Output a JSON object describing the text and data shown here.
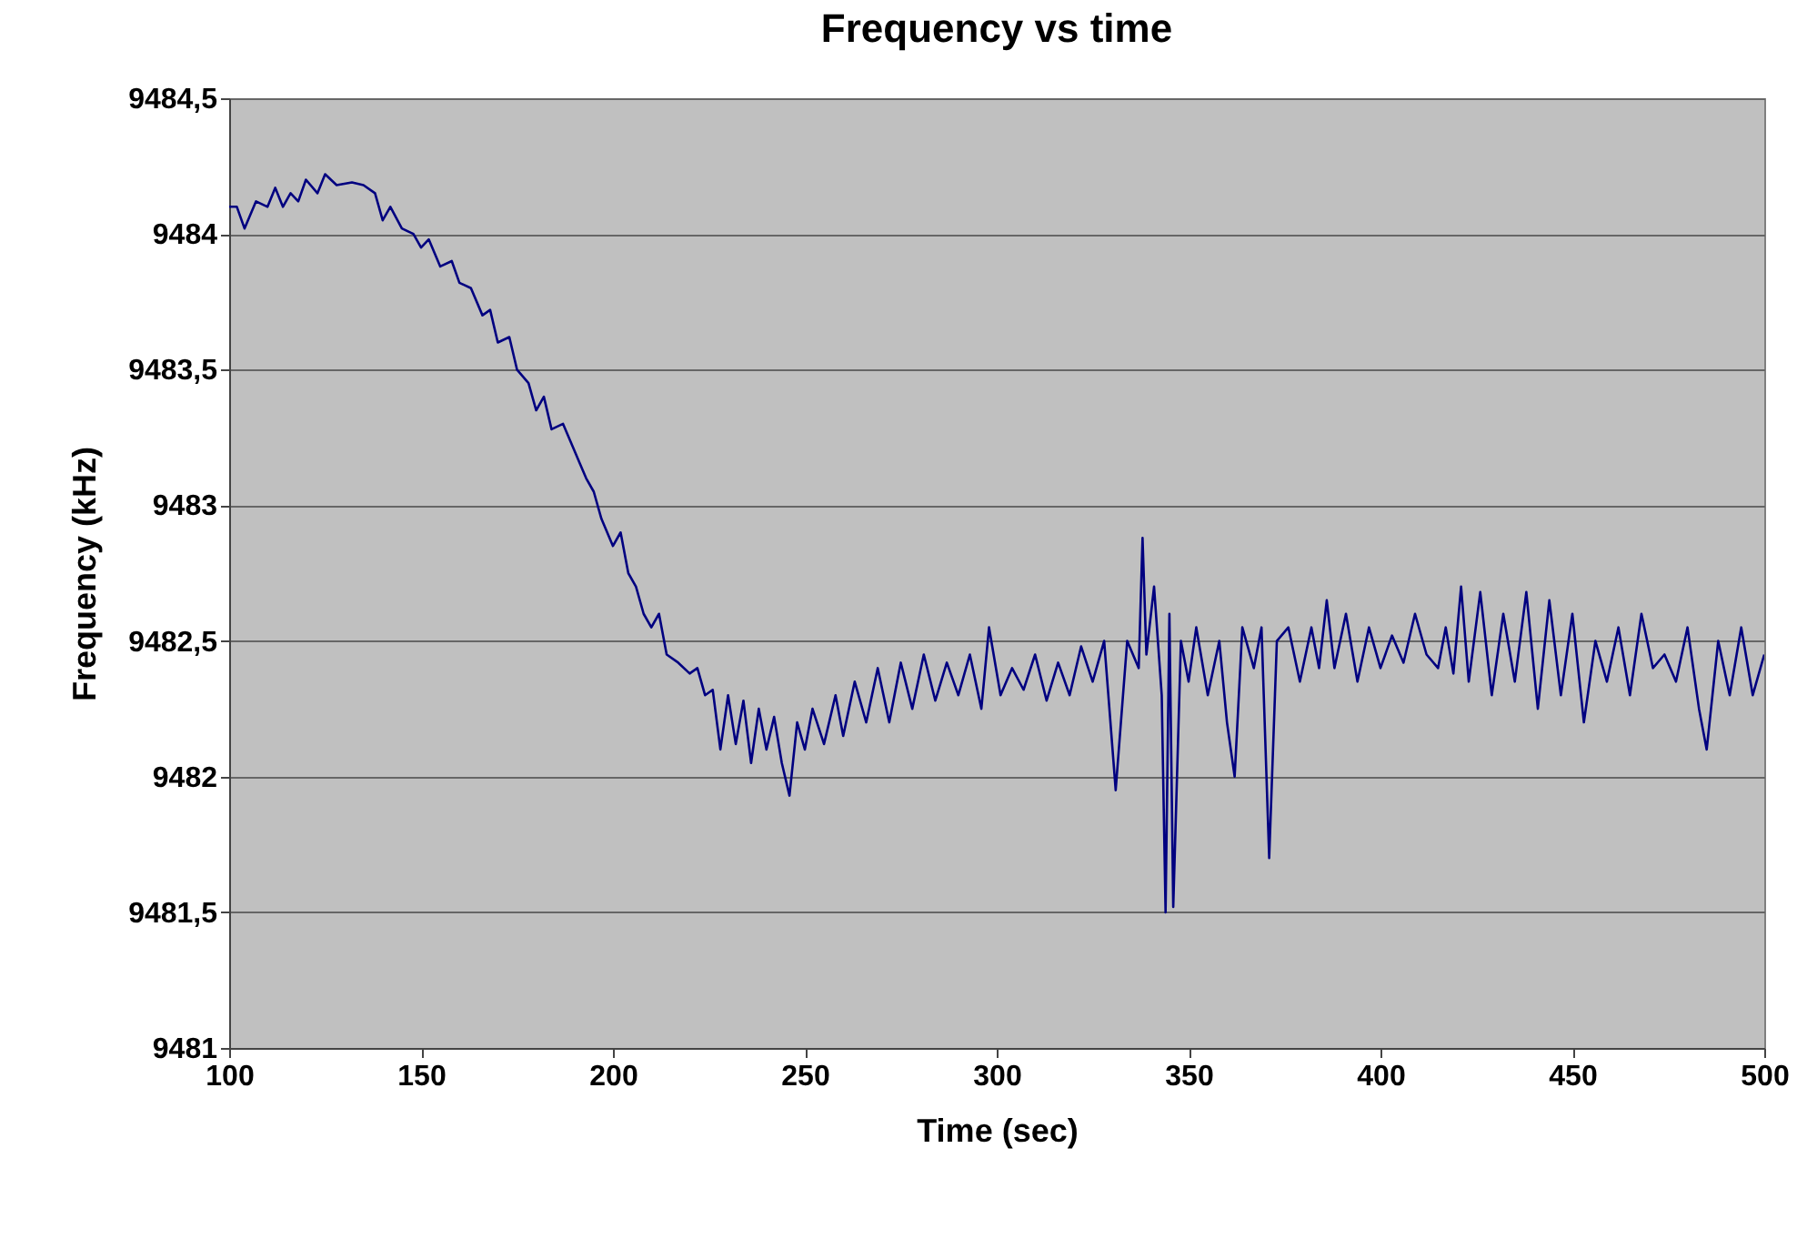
{
  "chart_data": {
    "type": "line",
    "title": "Frequency vs time",
    "xlabel": "Time (sec)",
    "ylabel": "Frequency (kHz)",
    "x": [
      100,
      102,
      104,
      107,
      110,
      112,
      114,
      116,
      118,
      120,
      123,
      125,
      128,
      132,
      135,
      138,
      140,
      142,
      145,
      148,
      150,
      152,
      155,
      158,
      160,
      163,
      166,
      168,
      170,
      173,
      175,
      178,
      180,
      182,
      184,
      187,
      190,
      193,
      195,
      197,
      200,
      202,
      204,
      206,
      208,
      210,
      212,
      214,
      217,
      220,
      222,
      224,
      226,
      228,
      230,
      232,
      234,
      236,
      238,
      240,
      242,
      244,
      246,
      248,
      250,
      252,
      255,
      258,
      260,
      263,
      266,
      269,
      272,
      275,
      278,
      281,
      284,
      287,
      290,
      293,
      296,
      298,
      301,
      304,
      307,
      310,
      313,
      316,
      319,
      322,
      325,
      328,
      331,
      334,
      337,
      338,
      339,
      341,
      343,
      344,
      345,
      346,
      348,
      350,
      352,
      355,
      358,
      360,
      362,
      364,
      367,
      369,
      371,
      373,
      376,
      379,
      382,
      384,
      386,
      388,
      391,
      394,
      397,
      400,
      403,
      406,
      409,
      412,
      415,
      417,
      419,
      421,
      423,
      426,
      429,
      432,
      435,
      438,
      441,
      444,
      447,
      450,
      453,
      456,
      459,
      462,
      465,
      468,
      471,
      474,
      477,
      480,
      483,
      485,
      488,
      491,
      494,
      497,
      500
    ],
    "series": [
      {
        "color": "#000080",
        "values": [
          9484.1,
          9484.1,
          9484.02,
          9484.12,
          9484.1,
          9484.17,
          9484.1,
          9484.15,
          9484.12,
          9484.2,
          9484.15,
          9484.22,
          9484.18,
          9484.19,
          9484.18,
          9484.15,
          9484.05,
          9484.1,
          9484.02,
          9484.0,
          9483.95,
          9483.98,
          9483.88,
          9483.9,
          9483.82,
          9483.8,
          9483.7,
          9483.72,
          9483.6,
          9483.62,
          9483.5,
          9483.45,
          9483.35,
          9483.4,
          9483.28,
          9483.3,
          9483.2,
          9483.1,
          9483.05,
          9482.95,
          9482.85,
          9482.9,
          9482.75,
          9482.7,
          9482.6,
          9482.55,
          9482.6,
          9482.45,
          9482.42,
          9482.38,
          9482.4,
          9482.3,
          9482.32,
          9482.1,
          9482.3,
          9482.12,
          9482.28,
          9482.05,
          9482.25,
          9482.1,
          9482.22,
          9482.05,
          9481.93,
          9482.2,
          9482.1,
          9482.25,
          9482.12,
          9482.3,
          9482.15,
          9482.35,
          9482.2,
          9482.4,
          9482.2,
          9482.42,
          9482.25,
          9482.45,
          9482.28,
          9482.42,
          9482.3,
          9482.45,
          9482.25,
          9482.55,
          9482.3,
          9482.4,
          9482.32,
          9482.45,
          9482.28,
          9482.42,
          9482.3,
          9482.48,
          9482.35,
          9482.5,
          9481.95,
          9482.5,
          9482.4,
          9482.88,
          9482.45,
          9482.7,
          9482.3,
          9481.5,
          9482.6,
          9481.52,
          9482.5,
          9482.35,
          9482.55,
          9482.3,
          9482.5,
          9482.2,
          9482.0,
          9482.55,
          9482.4,
          9482.55,
          9481.7,
          9482.5,
          9482.55,
          9482.35,
          9482.55,
          9482.4,
          9482.65,
          9482.4,
          9482.6,
          9482.35,
          9482.55,
          9482.4,
          9482.52,
          9482.42,
          9482.6,
          9482.45,
          9482.4,
          9482.55,
          9482.38,
          9482.7,
          9482.35,
          9482.68,
          9482.3,
          9482.6,
          9482.35,
          9482.68,
          9482.25,
          9482.65,
          9482.3,
          9482.6,
          9482.2,
          9482.5,
          9482.35,
          9482.55,
          9482.3,
          9482.6,
          9482.4,
          9482.45,
          9482.35,
          9482.55,
          9482.25,
          9482.1,
          9482.5,
          9482.3,
          9482.55,
          9482.3,
          9482.45
        ]
      }
    ],
    "xlim": [
      100,
      500
    ],
    "xticks": [
      100,
      150,
      200,
      250,
      300,
      350,
      400,
      450,
      500
    ],
    "ylim": [
      9481,
      9484.5
    ],
    "yticks": [
      9481,
      {
        "value": 9481.5,
        "label": "9481,5"
      },
      9482,
      {
        "value": 9482.5,
        "label": "9482,5"
      },
      9483,
      {
        "value": 9483.5,
        "label": "9483,5"
      },
      9484,
      {
        "value": 9484.5,
        "label": "9484,5"
      }
    ],
    "grid": "y",
    "marker": "none",
    "line_style": "solid"
  }
}
